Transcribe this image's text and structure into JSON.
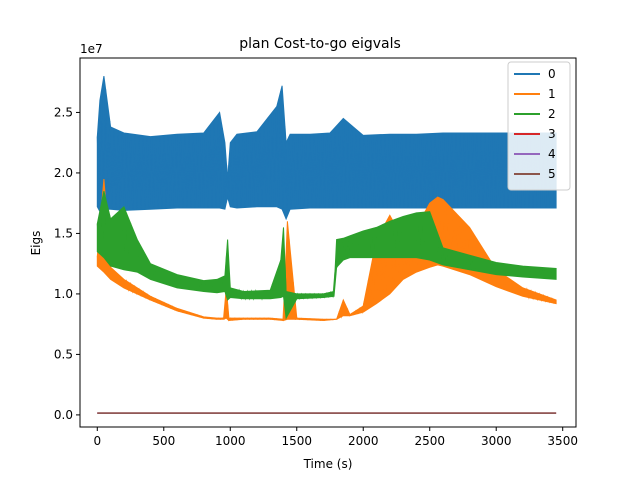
{
  "chart_data": {
    "type": "line",
    "title": "plan Cost-to-go eigvals",
    "xlabel": "Time (s)",
    "ylabel": "Eigs",
    "y_scale_label": "1e7",
    "xlim": [
      -130,
      3600
    ],
    "ylim": [
      -0.1,
      2.95
    ],
    "x_ticks": [
      0,
      500,
      1000,
      1500,
      2000,
      2500,
      3000,
      3500
    ],
    "x_tick_labels": [
      "0",
      "500",
      "1000",
      "1500",
      "2000",
      "2500",
      "3000",
      "3500"
    ],
    "y_ticks": [
      0.0,
      0.5,
      1.0,
      1.5,
      2.0,
      2.5
    ],
    "y_tick_labels": [
      "0.0",
      "0.5",
      "1.0",
      "1.5",
      "2.0",
      "2.5"
    ],
    "grid": false,
    "legend_position": "top-right",
    "series": [
      {
        "name": "0",
        "color": "#1f77b4",
        "band": true,
        "x": [
          0,
          20,
          50,
          100,
          200,
          400,
          600,
          800,
          920,
          960,
          980,
          1000,
          1050,
          1200,
          1350,
          1390,
          1420,
          1450,
          1600,
          1750,
          1850,
          2000,
          2200,
          2400,
          2600,
          2800,
          3000,
          3200,
          3450
        ],
        "upper": [
          2.3,
          2.6,
          2.8,
          2.38,
          2.33,
          2.3,
          2.32,
          2.33,
          2.5,
          2.25,
          1.95,
          2.25,
          2.32,
          2.34,
          2.55,
          2.72,
          2.25,
          2.32,
          2.32,
          2.33,
          2.45,
          2.31,
          2.32,
          2.32,
          2.33,
          2.33,
          2.33,
          2.33,
          2.33
        ],
        "lower": [
          1.72,
          1.68,
          1.7,
          1.7,
          1.69,
          1.7,
          1.71,
          1.71,
          1.71,
          1.7,
          1.8,
          1.72,
          1.71,
          1.72,
          1.72,
          1.7,
          1.62,
          1.7,
          1.71,
          1.71,
          1.71,
          1.71,
          1.71,
          1.71,
          1.71,
          1.71,
          1.71,
          1.71,
          1.71
        ]
      },
      {
        "name": "1",
        "color": "#ff7f0e",
        "band": true,
        "x": [
          0,
          50,
          100,
          200,
          400,
          600,
          800,
          900,
          950,
          970,
          990,
          1100,
          1300,
          1400,
          1430,
          1500,
          1700,
          1800,
          1850,
          1900,
          2000,
          2100,
          2200,
          2300,
          2400,
          2500,
          2560,
          2600,
          2800,
          3000,
          3200,
          3450
        ],
        "upper": [
          1.31,
          1.95,
          1.22,
          1.12,
          0.98,
          0.88,
          0.81,
          0.8,
          0.8,
          1.05,
          0.8,
          0.8,
          0.8,
          0.79,
          1.6,
          0.8,
          0.79,
          0.79,
          0.95,
          0.83,
          0.9,
          1.45,
          1.65,
          1.45,
          1.55,
          1.75,
          1.8,
          1.78,
          1.55,
          1.2,
          1.05,
          0.95
        ],
        "lower": [
          1.23,
          1.18,
          1.12,
          1.05,
          0.95,
          0.86,
          0.8,
          0.79,
          0.79,
          0.8,
          0.78,
          0.79,
          0.79,
          0.78,
          0.79,
          0.79,
          0.78,
          0.79,
          0.82,
          0.82,
          0.85,
          0.92,
          1.0,
          1.12,
          1.18,
          1.22,
          1.24,
          1.23,
          1.16,
          1.06,
          0.98,
          0.92
        ]
      },
      {
        "name": "2",
        "color": "#2ca02c",
        "band": true,
        "x": [
          0,
          50,
          100,
          200,
          300,
          400,
          600,
          800,
          900,
          960,
          980,
          1000,
          1100,
          1300,
          1380,
          1400,
          1420,
          1500,
          1700,
          1780,
          1800,
          1850,
          1900,
          2000,
          2100,
          2200,
          2300,
          2400,
          2500,
          2600,
          2800,
          3000,
          3200,
          3450
        ],
        "upper": [
          1.58,
          1.85,
          1.62,
          1.72,
          1.45,
          1.25,
          1.16,
          1.11,
          1.12,
          1.15,
          1.45,
          1.05,
          1.02,
          1.03,
          1.28,
          1.55,
          1.02,
          1.0,
          1.0,
          1.02,
          1.45,
          1.46,
          1.48,
          1.52,
          1.55,
          1.6,
          1.64,
          1.67,
          1.68,
          1.38,
          1.32,
          1.26,
          1.23,
          1.21
        ],
        "lower": [
          1.35,
          1.3,
          1.23,
          1.2,
          1.18,
          1.12,
          1.05,
          1.02,
          1.01,
          1.02,
          0.95,
          0.97,
          0.96,
          0.96,
          0.97,
          0.98,
          0.8,
          0.96,
          0.97,
          0.98,
          1.22,
          1.28,
          1.3,
          1.3,
          1.3,
          1.3,
          1.3,
          1.3,
          1.28,
          1.24,
          1.2,
          1.16,
          1.14,
          1.12
        ]
      },
      {
        "name": "3",
        "color": "#d62728",
        "band": false,
        "x": [
          0,
          3450
        ],
        "values": [
          0.015,
          0.015
        ]
      },
      {
        "name": "4",
        "color": "#9467bd",
        "band": false,
        "x": [
          0,
          3450
        ],
        "values": [
          0.015,
          0.015
        ]
      },
      {
        "name": "5",
        "color": "#8c564b",
        "band": false,
        "x": [
          0,
          3450
        ],
        "values": [
          0.015,
          0.015
        ]
      }
    ]
  }
}
